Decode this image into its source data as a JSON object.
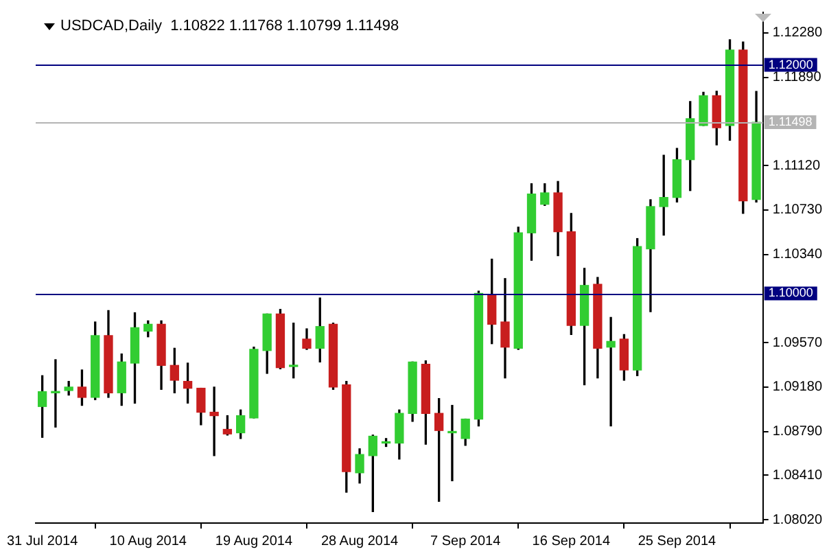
{
  "chart_data": {
    "type": "candlestick",
    "title": "USDCAD,Daily  1.10822 1.11768 1.10799 1.11498",
    "categories": [
      "31 Jul 2014",
      null,
      null,
      null,
      null,
      null,
      null,
      null,
      "10 Aug 2014",
      null,
      null,
      null,
      null,
      null,
      null,
      null,
      "19 Aug 2014",
      null,
      null,
      null,
      null,
      null,
      null,
      null,
      "28 Aug 2014",
      null,
      null,
      null,
      null,
      null,
      null,
      null,
      "7 Sep 2014",
      null,
      null,
      null,
      null,
      null,
      null,
      null,
      "16 Sep 2014",
      null,
      null,
      null,
      null,
      null,
      null,
      null,
      "25 Sep 2014",
      null,
      null,
      null,
      null,
      null,
      null
    ],
    "ohlc": [
      [
        1.0901,
        1.0928,
        1.0874,
        1.0914
      ],
      [
        1.0913,
        1.0942,
        1.0883,
        1.0913
      ],
      [
        1.0915,
        1.0923,
        1.0911,
        1.0918
      ],
      [
        1.0918,
        1.0933,
        1.0902,
        1.0909
      ],
      [
        1.0909,
        1.0975,
        1.0907,
        1.0963
      ],
      [
        1.0963,
        1.0985,
        1.0909,
        1.0913
      ],
      [
        1.0913,
        1.0947,
        1.0902,
        1.094
      ],
      [
        1.0939,
        1.0983,
        1.0904,
        1.097
      ],
      [
        1.0967,
        1.0976,
        1.0962,
        1.0973
      ],
      [
        1.0973,
        1.0976,
        1.0916,
        1.0937
      ],
      [
        1.0937,
        1.0952,
        1.0913,
        1.0924
      ],
      [
        1.0923,
        1.0939,
        1.0904,
        1.0917
      ],
      [
        1.0917,
        1.0917,
        1.0885,
        1.0896
      ],
      [
        1.0896,
        1.0918,
        1.0858,
        1.0893
      ],
      [
        1.0881,
        1.0893,
        1.0876,
        1.0877
      ],
      [
        1.0878,
        1.0898,
        1.0873,
        1.0893
      ],
      [
        1.0891,
        1.0953,
        1.0891,
        1.0951
      ],
      [
        1.095,
        1.0982,
        1.093,
        1.0982
      ],
      [
        1.0982,
        1.0986,
        1.0934,
        1.0935
      ],
      [
        1.0936,
        1.0974,
        1.0926,
        1.0936
      ],
      [
        1.096,
        1.0969,
        1.0951,
        1.0952
      ],
      [
        1.0952,
        1.0996,
        1.094,
        1.0971
      ],
      [
        1.0973,
        1.0974,
        1.0916,
        1.0918
      ],
      [
        1.092,
        1.0923,
        1.0826,
        1.0844
      ],
      [
        1.0843,
        1.0864,
        1.0834,
        1.0859
      ],
      [
        1.0858,
        1.0876,
        1.0809,
        1.0875
      ],
      [
        1.0869,
        1.0873,
        1.0866,
        1.087
      ],
      [
        1.0869,
        1.0898,
        1.0855,
        1.0895
      ],
      [
        1.0895,
        1.094,
        1.0888,
        1.094
      ],
      [
        1.0938,
        1.0941,
        1.0868,
        1.0895
      ],
      [
        1.0895,
        1.0908,
        1.0818,
        1.088
      ],
      [
        1.0878,
        1.0902,
        1.0836,
        1.0878
      ],
      [
        1.0873,
        1.089,
        1.0867,
        1.089
      ],
      [
        1.089,
        1.1002,
        1.0884,
        1.1
      ],
      [
        1.0999,
        1.103,
        1.0956,
        1.0973
      ],
      [
        1.0975,
        1.1013,
        1.0926,
        1.0953
      ],
      [
        1.0952,
        1.1058,
        1.0951,
        1.1053
      ],
      [
        1.1053,
        1.1096,
        1.1029,
        1.1087
      ],
      [
        1.1078,
        1.1096,
        1.1077,
        1.1088
      ],
      [
        1.1088,
        1.1098,
        1.1033,
        1.1054
      ],
      [
        1.1054,
        1.107,
        1.0964,
        1.0972
      ],
      [
        1.0972,
        1.1022,
        1.092,
        1.1007
      ],
      [
        1.1008,
        1.1014,
        1.0926,
        1.0952
      ],
      [
        1.0953,
        1.0979,
        1.0884,
        1.0958
      ],
      [
        1.096,
        1.0964,
        1.0924,
        1.0933
      ],
      [
        1.0933,
        1.1048,
        1.0928,
        1.1041
      ],
      [
        1.1039,
        1.1082,
        1.0984,
        1.1076
      ],
      [
        1.1076,
        1.1121,
        1.1051,
        1.1084
      ],
      [
        1.1084,
        1.1127,
        1.108,
        1.1117
      ],
      [
        1.1117,
        1.1168,
        1.109,
        1.1153
      ],
      [
        1.1147,
        1.1176,
        1.1147,
        1.1173
      ],
      [
        1.1173,
        1.1177,
        1.113,
        1.1145
      ],
      [
        1.1147,
        1.1222,
        1.1134,
        1.1213
      ],
      [
        1.1213,
        1.122,
        1.107,
        1.1081
      ],
      [
        1.10822,
        1.11768,
        1.10799,
        1.11498
      ]
    ],
    "colors": [
      "#32cd32",
      "#32cd32",
      "#32cd32",
      "#c81e1e",
      "#32cd32",
      "#c81e1e",
      "#32cd32",
      "#32cd32",
      "#32cd32",
      "#c81e1e",
      "#c81e1e",
      "#c81e1e",
      "#c81e1e",
      "#c81e1e",
      "#c81e1e",
      "#32cd32",
      "#32cd32",
      "#32cd32",
      "#c81e1e",
      "#32cd32",
      "#c81e1e",
      "#32cd32",
      "#c81e1e",
      "#c81e1e",
      "#32cd32",
      "#32cd32",
      "#32cd32",
      "#32cd32",
      "#32cd32",
      "#c81e1e",
      "#c81e1e",
      "#32cd32",
      "#32cd32",
      "#32cd32",
      "#c81e1e",
      "#c81e1e",
      "#32cd32",
      "#32cd32",
      "#32cd32",
      "#c81e1e",
      "#c81e1e",
      "#32cd32",
      "#c81e1e",
      "#32cd32",
      "#c81e1e",
      "#32cd32",
      "#32cd32",
      "#32cd32",
      "#32cd32",
      "#32cd32",
      "#32cd32",
      "#c81e1e",
      "#32cd32",
      "#c81e1e",
      "#32cd32"
    ],
    "ylim": [
      1.0799,
      1.1246
    ],
    "yticks": [
      {
        "value": 1.0802,
        "label": "1.08020"
      },
      {
        "value": 1.0841,
        "label": "1.08410"
      },
      {
        "value": 1.0879,
        "label": "1.08790"
      },
      {
        "value": 1.0918,
        "label": "1.09180"
      },
      {
        "value": 1.0957,
        "label": "1.09570"
      },
      {
        "value": 1.1034,
        "label": "1.10340"
      },
      {
        "value": 1.1073,
        "label": "1.10730"
      },
      {
        "value": 1.1112,
        "label": "1.11120"
      },
      {
        "value": 1.1189,
        "label": "1.11890"
      },
      {
        "value": 1.1228,
        "label": "1.12280"
      }
    ],
    "ref_lines": [
      {
        "axis": "y",
        "value": 1.12,
        "label": "1.12000",
        "color": "#000080"
      },
      {
        "axis": "y",
        "value": 1.1,
        "label": "1.10000",
        "color": "#000080"
      },
      {
        "axis": "y",
        "value": 1.11498,
        "label": "1.11498",
        "color": "#b4b4b4"
      }
    ],
    "grid": false,
    "legend": false
  }
}
